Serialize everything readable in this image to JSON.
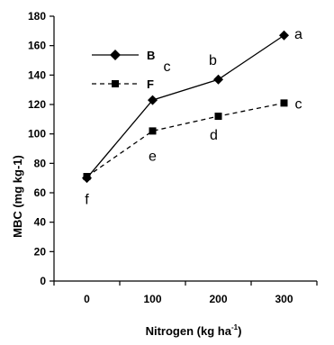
{
  "chart_data": {
    "type": "line",
    "title": "",
    "xlabel_main": "Nitrogen (kg ha",
    "xlabel_sup": "-1",
    "xlabel_end": ")",
    "ylabel": "MBC (mg kg-1)",
    "categories": [
      "0",
      "100",
      "200",
      "300"
    ],
    "ylim": [
      0,
      180
    ],
    "yticks": [
      0,
      20,
      40,
      60,
      80,
      100,
      120,
      140,
      160,
      180
    ],
    "grid": false,
    "legend_position": "top-left",
    "series": [
      {
        "name": "B",
        "marker": "diamond",
        "line": "solid",
        "color": "#000000",
        "values": [
          70,
          123,
          137,
          167
        ]
      },
      {
        "name": "F",
        "marker": "square",
        "line": "dashed",
        "color": "#000000",
        "values": [
          71,
          102,
          112,
          121
        ]
      }
    ],
    "annotations": [
      {
        "text": "a",
        "x": "300",
        "y": 167
      },
      {
        "text": "b",
        "x": "200",
        "y": 137
      },
      {
        "text": "c",
        "x": "100",
        "y": 123
      },
      {
        "text": "c",
        "x": "300",
        "y": 121
      },
      {
        "text": "d",
        "x": "200",
        "y": 112
      },
      {
        "text": "e",
        "x": "100",
        "y": 102
      },
      {
        "text": "f",
        "x": "0",
        "y": 70
      }
    ]
  }
}
